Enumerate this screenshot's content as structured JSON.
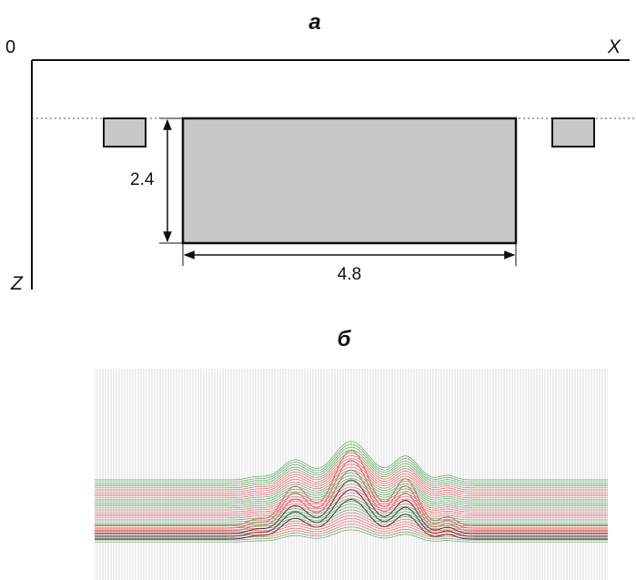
{
  "panel_a": {
    "label": "а",
    "origin_label": "0",
    "x_axis_label": "X",
    "z_axis_label": "Z",
    "height_label": "2.4",
    "width_label": "4.8",
    "body_fill": "#c8c8c8"
  },
  "panel_b": {
    "label": "б",
    "colors": {
      "vertical_grid": "#d2d2d2",
      "green_lines": "#4a9a4a",
      "red_lines": "#e05050",
      "dark_lines": "#222222"
    }
  }
}
